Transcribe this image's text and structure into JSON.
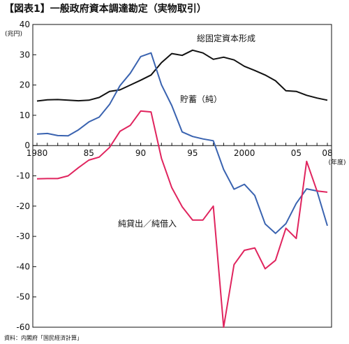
{
  "chart_data": {
    "type": "line",
    "title": "【図表1】一般政府資本調達勘定（実物取引）",
    "y_unit": "(兆円)",
    "x_unit": "(年度)",
    "ylim": [
      -60,
      40
    ],
    "y_ticks": [
      40,
      30,
      20,
      10,
      0,
      -10,
      -20,
      -30,
      -40,
      -50,
      -60
    ],
    "x_range": [
      1980,
      2008
    ],
    "x_ticks": [
      {
        "value": 1980,
        "label": "1980"
      },
      {
        "value": 1985,
        "label": "85"
      },
      {
        "value": 1990,
        "label": "90"
      },
      {
        "value": 1995,
        "label": "95"
      },
      {
        "value": 2000,
        "label": "2000"
      },
      {
        "value": 2005,
        "label": "05"
      },
      {
        "value": 2008,
        "label": "08"
      }
    ],
    "grid": false,
    "x": [
      1980,
      1981,
      1982,
      1983,
      1984,
      1985,
      1986,
      1987,
      1988,
      1989,
      1990,
      1991,
      1992,
      1993,
      1994,
      1995,
      1996,
      1997,
      1998,
      1999,
      2000,
      2001,
      2002,
      2003,
      2004,
      2005,
      2006,
      2007,
      2008
    ],
    "series": [
      {
        "name": "総固定資本形成",
        "color": "#111111",
        "values": [
          14.7,
          15.1,
          15.2,
          15.0,
          14.8,
          15.0,
          15.9,
          17.9,
          18.4,
          20.0,
          21.6,
          23.3,
          27.4,
          30.4,
          29.8,
          31.5,
          30.6,
          28.5,
          29.2,
          28.3,
          26.2,
          24.8,
          23.3,
          21.4,
          18.1,
          17.9,
          16.6,
          15.7,
          15.0
        ]
      },
      {
        "name": "貯蓄（純）",
        "color": "#3a63b0",
        "values": [
          3.8,
          4.0,
          3.3,
          3.2,
          5.2,
          7.8,
          9.4,
          13.6,
          19.8,
          23.9,
          29.4,
          30.6,
          20.1,
          13.2,
          4.5,
          3.0,
          2.2,
          1.6,
          -7.9,
          -14.4,
          -12.8,
          -16.5,
          -25.9,
          -29.0,
          -25.8,
          -19.1,
          -14.3,
          -15.0,
          -26.5
        ]
      },
      {
        "name": "純貸出／純借入",
        "color": "#e0245e",
        "values": [
          -11.0,
          -10.9,
          -10.9,
          -10.0,
          -7.3,
          -4.8,
          -3.8,
          -0.6,
          4.7,
          6.7,
          11.4,
          11.1,
          -4.2,
          -13.9,
          -20.2,
          -24.6,
          -24.6,
          -20.0,
          -60.0,
          -39.3,
          -34.6,
          -33.8,
          -40.7,
          -37.9,
          -27.3,
          -30.7,
          -5.2,
          -15.0,
          -15.4
        ]
      }
    ]
  },
  "source": "資料：内閣府「国民経済計算」"
}
